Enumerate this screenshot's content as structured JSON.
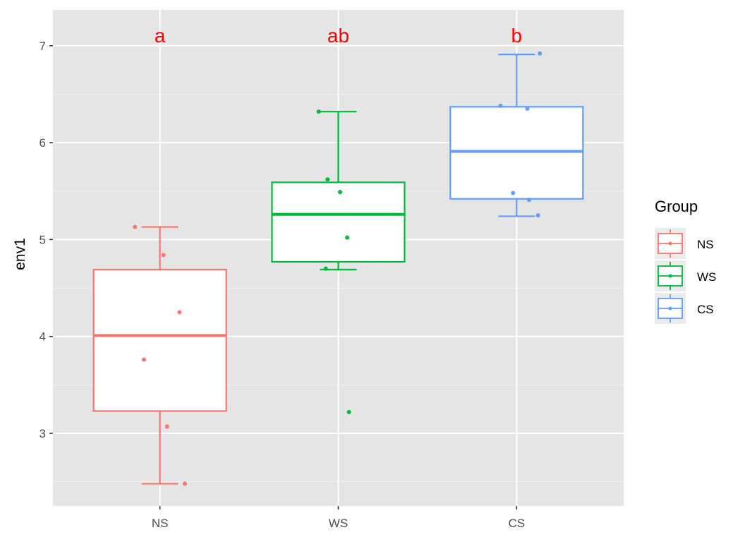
{
  "chart_data": {
    "type": "box",
    "title": "",
    "xlabel": "",
    "ylabel": "env1",
    "categories": [
      "NS",
      "WS",
      "CS"
    ],
    "ylim": [
      2.25,
      7.37
    ],
    "yticks": [
      3,
      4,
      5,
      6,
      7
    ],
    "grid": true,
    "legend": {
      "title": "Group",
      "position": "right",
      "entries": [
        "NS",
        "WS",
        "CS"
      ]
    },
    "colors": {
      "NS": "#F8766D",
      "WS": "#00BA38",
      "CS": "#619CFF",
      "annotation": "#FF0000",
      "panel": "#EBEBEB"
    },
    "series": [
      {
        "name": "NS",
        "whisker_low": 2.48,
        "q1": 3.23,
        "median": 4.01,
        "q3": 4.69,
        "whisker_high": 5.13,
        "points": [
          5.13,
          4.84,
          4.25,
          3.76,
          3.07,
          2.48
        ],
        "jitter": [
          -0.14,
          0.02,
          0.11,
          -0.09,
          0.04,
          0.14
        ],
        "outliers": []
      },
      {
        "name": "WS",
        "whisker_low": 4.69,
        "q1": 4.77,
        "median": 5.26,
        "q3": 5.59,
        "whisker_high": 6.32,
        "points": [
          6.32,
          5.62,
          5.49,
          5.02,
          4.7,
          3.22
        ],
        "jitter": [
          -0.11,
          -0.06,
          0.01,
          0.05,
          -0.07,
          0.06
        ],
        "outliers": [
          3.22
        ]
      },
      {
        "name": "CS",
        "whisker_low": 5.24,
        "q1": 5.42,
        "median": 5.91,
        "q3": 6.37,
        "whisker_high": 6.91,
        "points": [
          6.92,
          6.38,
          6.35,
          5.48,
          5.41,
          5.25
        ],
        "jitter": [
          0.13,
          -0.09,
          0.06,
          -0.02,
          0.07,
          0.12
        ],
        "outliers": []
      }
    ],
    "annotations": [
      "a",
      "ab",
      "b"
    ]
  }
}
